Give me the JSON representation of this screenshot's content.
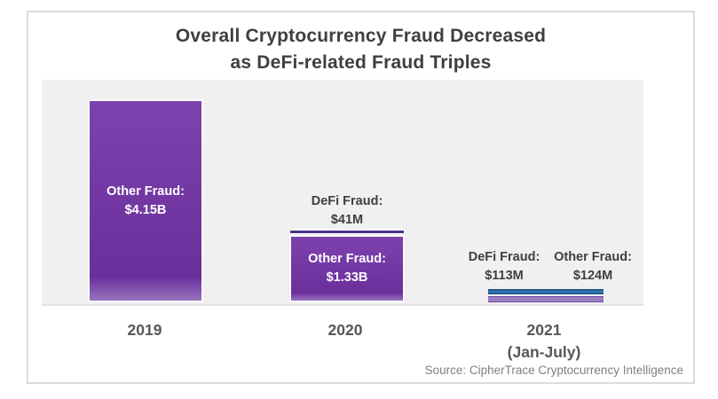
{
  "title": {
    "line1": "Overall Cryptocurrency Fraud Decreased",
    "line2": "as DeFi-related Fraud Triples"
  },
  "source_note": "Source: CipherTrace Cryptocurrency Intelligence",
  "colors": {
    "purple": "#6b2f9c",
    "purple_top": "#7d42ad",
    "defi_blue": "#2e75b6",
    "defi_blue_dark": "#1f4e79",
    "defi_2020": "#4b3389",
    "plot_bg": "#f1f0f0",
    "title_text": "#3f3f3f",
    "axis_text": "#575757",
    "source_text": "#7f7f7f"
  },
  "labels": {
    "b2019_other_title": "Other Fraud:",
    "b2019_other_value": "$4.15B",
    "b2020_defi_title": "DeFi Fraud:",
    "b2020_defi_value": "$41M",
    "b2020_other_title": "Other Fraud:",
    "b2020_other_value": "$1.33B",
    "b2021_defi_title": "DeFi Fraud:",
    "b2021_defi_value": "$113M",
    "b2021_other_title": "Other Fraud:",
    "b2021_other_value": "$124M"
  },
  "axis": {
    "x1": "2019",
    "x2": "2020",
    "x3": "2021",
    "x3_sub": "(Jan-July)"
  },
  "chart_data": {
    "type": "bar",
    "stacked": true,
    "title": "Overall Cryptocurrency Fraud Decreased as DeFi-related Fraud Triples",
    "categories": [
      "2019",
      "2020",
      "2021 (Jan-July)"
    ],
    "series": [
      {
        "name": "DeFi Fraud",
        "color": "#2e75b6",
        "values_usd_millions": [
          0,
          41,
          113
        ]
      },
      {
        "name": "Other Fraud",
        "color": "#7030a0",
        "values_usd_millions": [
          4150,
          1330,
          124
        ]
      }
    ],
    "unit": "USD millions",
    "ylim_usd_millions": [
      0,
      4350
    ],
    "grid": false,
    "legend": "none",
    "value_labels": [
      "Other Fraud: $4.15B",
      "DeFi Fraud: $41M",
      "Other Fraud: $1.33B",
      "DeFi Fraud: $113M",
      "Other Fraud: $124M"
    ]
  }
}
